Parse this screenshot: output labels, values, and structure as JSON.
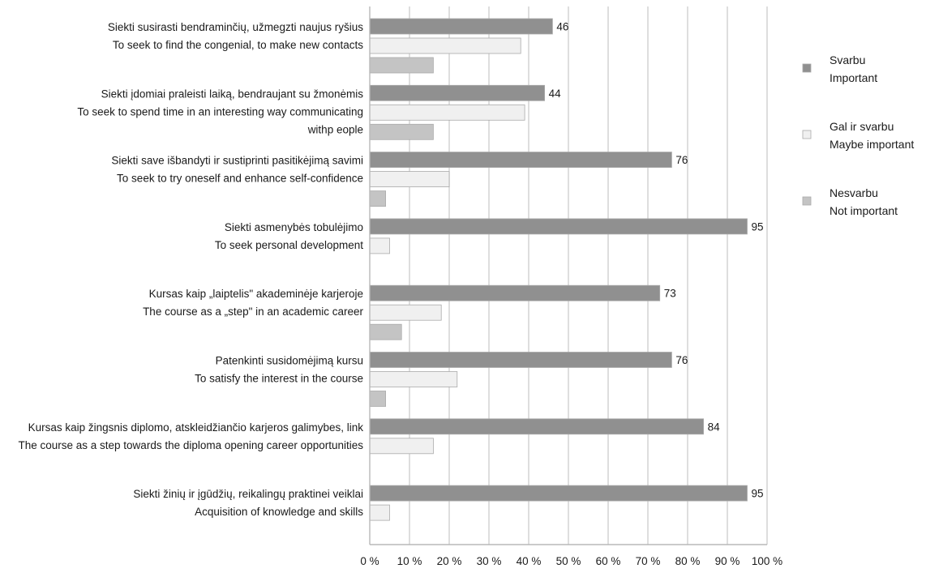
{
  "chart_data": {
    "type": "bar",
    "orientation": "horizontal",
    "categories": [
      [
        "Siekti susirasti bendraminčių, užmegzti naujus ryšius",
        "To seek to find the congenial, to make new contacts"
      ],
      [
        "Siekti įdomiai praleisti laiką, bendraujant su žmonėmis",
        "To seek to spend time in an interesting way communicating",
        "withp eople"
      ],
      [
        "Siekti save išbandyti ir sustiprinti pasitikėjimą savimi",
        "To seek to try oneself and enhance self-confidence"
      ],
      [
        "Siekti asmenybės tobulėjimo",
        "To seek personal development"
      ],
      [
        "Kursas kaip „laiptelis\" akademinėje karjeroje",
        "The course as a „step\" in an academic career"
      ],
      [
        "Patenkinti susidomėjimą kursu",
        "To satisfy the interest in the course"
      ],
      [
        "Kursas kaip žingsnis diplomo, atskleidžiančio karjeros galimybes, link",
        "The course as a step towards the diploma opening career opportunities"
      ],
      [
        "Siekti žinių ir įgūdžių, reikalingų praktinei veiklai",
        "Acquisition of knowledge and skills"
      ]
    ],
    "series": [
      {
        "name": [
          "Svarbu",
          "Important"
        ],
        "color": "#909090",
        "values": [
          46,
          44,
          76,
          95,
          73,
          76,
          84,
          95
        ],
        "labels": [
          "46",
          "44",
          "76",
          "95",
          "73",
          "76",
          "84",
          "95"
        ]
      },
      {
        "name": [
          "Gal ir svarbu",
          "Maybe important"
        ],
        "color": "#f0f0f0",
        "values": [
          38,
          39,
          20,
          5,
          18,
          22,
          16,
          5
        ]
      },
      {
        "name": [
          "Nesvarbu",
          "Not important"
        ],
        "color": "#c4c4c4",
        "values": [
          16,
          16,
          4,
          0,
          8,
          4,
          0,
          0
        ]
      }
    ],
    "xaxis": {
      "min": 0,
      "max": 100,
      "step": 10,
      "tick_labels": [
        "0 %",
        "10 %",
        "20 %",
        "30 %",
        "40 %",
        "50 %",
        "60 %",
        "70 %",
        "80 %",
        "90 %",
        "100 %"
      ]
    },
    "grid": "vertical",
    "legend_position": "right",
    "title": "",
    "xlabel": "",
    "ylabel": ""
  }
}
